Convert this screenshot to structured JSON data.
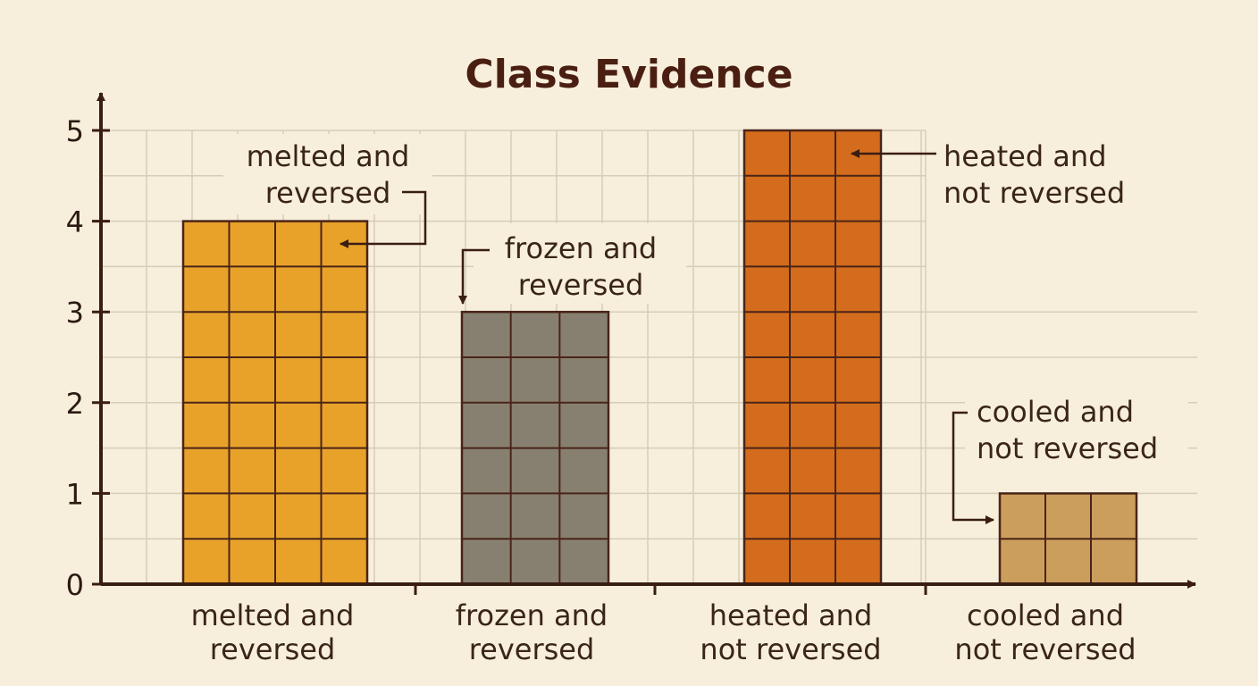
{
  "chart_data": {
    "type": "bar",
    "title": "Class Evidence",
    "categories": [
      [
        "melted and",
        "reversed"
      ],
      [
        "frozen and",
        "reversed"
      ],
      [
        "heated and",
        "not reversed"
      ],
      [
        "cooled and",
        "not reversed"
      ]
    ],
    "values": [
      4,
      3,
      5,
      1
    ],
    "ylim": [
      0,
      5
    ],
    "yticks": [
      "0",
      "1",
      "2",
      "3",
      "4",
      "5"
    ],
    "grid": true,
    "colors": [
      "#e8a22a",
      "#878070",
      "#d36c1c",
      "#cb9e5c"
    ],
    "annotations": [
      [
        "melted and",
        "reversed"
      ],
      [
        "frozen and",
        "reversed"
      ],
      [
        "heated and",
        "not reversed"
      ],
      [
        "cooled and",
        "not reversed"
      ]
    ]
  }
}
